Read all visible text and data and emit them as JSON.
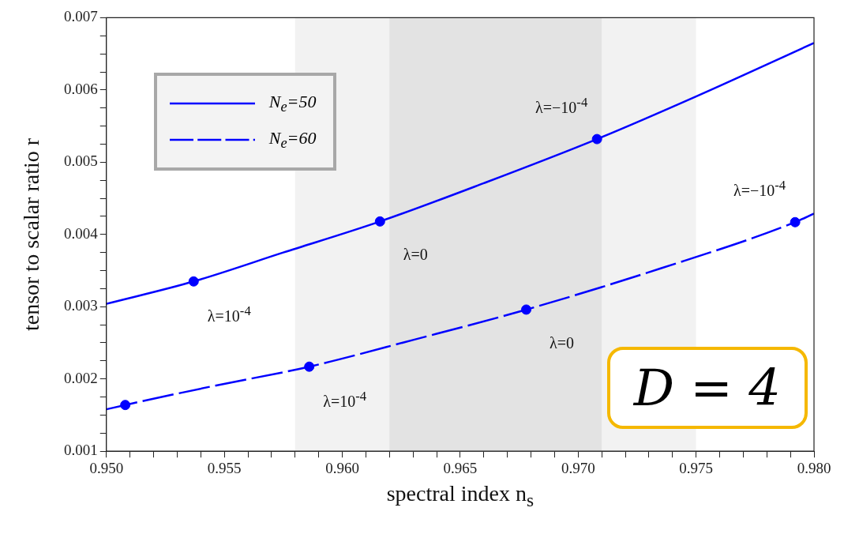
{
  "chart_data": {
    "type": "line",
    "xlabel": "spectral index n$_{s}$",
    "ylabel": "tensor to scalar ratio r",
    "xlim": [
      0.95,
      0.98
    ],
    "xticks": [
      {
        "value": 0.95,
        "label": "0.950"
      },
      {
        "value": 0.951,
        "label": null
      },
      {
        "value": 0.952,
        "label": null
      },
      {
        "value": 0.953,
        "label": null
      },
      {
        "value": 0.954,
        "label": null
      },
      {
        "value": 0.955,
        "label": "0.955"
      },
      {
        "value": 0.956,
        "label": null
      },
      {
        "value": 0.957,
        "label": null
      },
      {
        "value": 0.958,
        "label": null
      },
      {
        "value": 0.959,
        "label": null
      },
      {
        "value": 0.96,
        "label": "0.960"
      },
      {
        "value": 0.961,
        "label": null
      },
      {
        "value": 0.962,
        "label": null
      },
      {
        "value": 0.963,
        "label": null
      },
      {
        "value": 0.964,
        "label": null
      },
      {
        "value": 0.965,
        "label": "0.965"
      },
      {
        "value": 0.966,
        "label": null
      },
      {
        "value": 0.967,
        "label": null
      },
      {
        "value": 0.968,
        "label": null
      },
      {
        "value": 0.969,
        "label": null
      },
      {
        "value": 0.97,
        "label": "0.970"
      },
      {
        "value": 0.971,
        "label": null
      },
      {
        "value": 0.972,
        "label": null
      },
      {
        "value": 0.973,
        "label": null
      },
      {
        "value": 0.974,
        "label": null
      },
      {
        "value": 0.975,
        "label": "0.975"
      },
      {
        "value": 0.976,
        "label": null
      },
      {
        "value": 0.977,
        "label": null
      },
      {
        "value": 0.978,
        "label": null
      },
      {
        "value": 0.979,
        "label": null
      },
      {
        "value": 0.98,
        "label": "0.980"
      }
    ],
    "ylim": [
      0.001,
      0.007
    ],
    "yticks": [
      {
        "value": 0.001,
        "label": "0.001"
      },
      {
        "value": 0.00125,
        "label": null
      },
      {
        "value": 0.0015,
        "label": null
      },
      {
        "value": 0.00175,
        "label": null
      },
      {
        "value": 0.002,
        "label": "0.002"
      },
      {
        "value": 0.00225,
        "label": null
      },
      {
        "value": 0.0025,
        "label": null
      },
      {
        "value": 0.00275,
        "label": null
      },
      {
        "value": 0.003,
        "label": "0.003"
      },
      {
        "value": 0.00325,
        "label": null
      },
      {
        "value": 0.0035,
        "label": null
      },
      {
        "value": 0.00375,
        "label": null
      },
      {
        "value": 0.004,
        "label": "0.004"
      },
      {
        "value": 0.00425,
        "label": null
      },
      {
        "value": 0.0045,
        "label": null
      },
      {
        "value": 0.00475,
        "label": null
      },
      {
        "value": 0.005,
        "label": "0.005"
      },
      {
        "value": 0.00525,
        "label": null
      },
      {
        "value": 0.0055,
        "label": null
      },
      {
        "value": 0.00575,
        "label": null
      },
      {
        "value": 0.006,
        "label": "0.006"
      },
      {
        "value": 0.00625,
        "label": null
      },
      {
        "value": 0.0065,
        "label": null
      },
      {
        "value": 0.00675,
        "label": null
      },
      {
        "value": 0.007,
        "label": "0.007"
      }
    ],
    "grid": false,
    "legend": "top left",
    "marker": "none",
    "bands": [
      {
        "axis": "x",
        "from": 0.958,
        "to": 0.975,
        "color": "#f2f2f2"
      },
      {
        "axis": "x",
        "from": 0.962,
        "to": 0.971,
        "color": "#e3e3e3"
      }
    ],
    "series": [
      {
        "name": "N$_{e}$=50",
        "color": "#0000ff",
        "line_style": "solid",
        "x": [
          0.95,
          0.9537,
          0.9575,
          0.9616,
          0.966,
          0.9708,
          0.975,
          0.98
        ],
        "values": [
          0.00304,
          0.00335,
          0.00375,
          0.00418,
          0.00471,
          0.00532,
          0.00591,
          0.00665
        ]
      },
      {
        "name": "N$_{e}$=60",
        "color": "#0000ff",
        "line_style": "dashed",
        "x": [
          0.95,
          0.9508,
          0.9545,
          0.9586,
          0.963,
          0.9678,
          0.9735,
          0.9792,
          0.98
        ],
        "values": [
          0.00158,
          0.00164,
          0.0019,
          0.00217,
          0.00254,
          0.00296,
          0.00353,
          0.00417,
          0.00429
        ]
      },
      {
        "type": "scatter",
        "color": "#0000ff",
        "marker": "circle",
        "x": [
          0.9537,
          0.9616,
          0.9708
        ],
        "values": [
          0.00335,
          0.00418,
          0.00532
        ]
      },
      {
        "type": "scatter",
        "color": "#0000ff",
        "marker": "circle",
        "x": [
          0.9508,
          0.9586,
          0.9678,
          0.9792
        ],
        "values": [
          0.00164,
          0.00217,
          0.00296,
          0.00417
        ]
      }
    ],
    "annotations": [
      {
        "text": "λ=10$^{-4}$",
        "x": 0.9537,
        "y": 0.00335
      },
      {
        "text": "λ=0",
        "x": 0.9616,
        "y": 0.00418
      },
      {
        "text": "λ=−10$^{-4}$",
        "x": 0.9708,
        "y": 0.00532
      },
      {
        "text": "λ=10$^{-4}$",
        "x": 0.9586,
        "y": 0.00217
      },
      {
        "text": "λ=0",
        "x": 0.9678,
        "y": 0.00296
      },
      {
        "text": "λ=−10$^{-4}$",
        "x": 0.9792,
        "y": 0.00417
      },
      "D = 4"
    ]
  }
}
